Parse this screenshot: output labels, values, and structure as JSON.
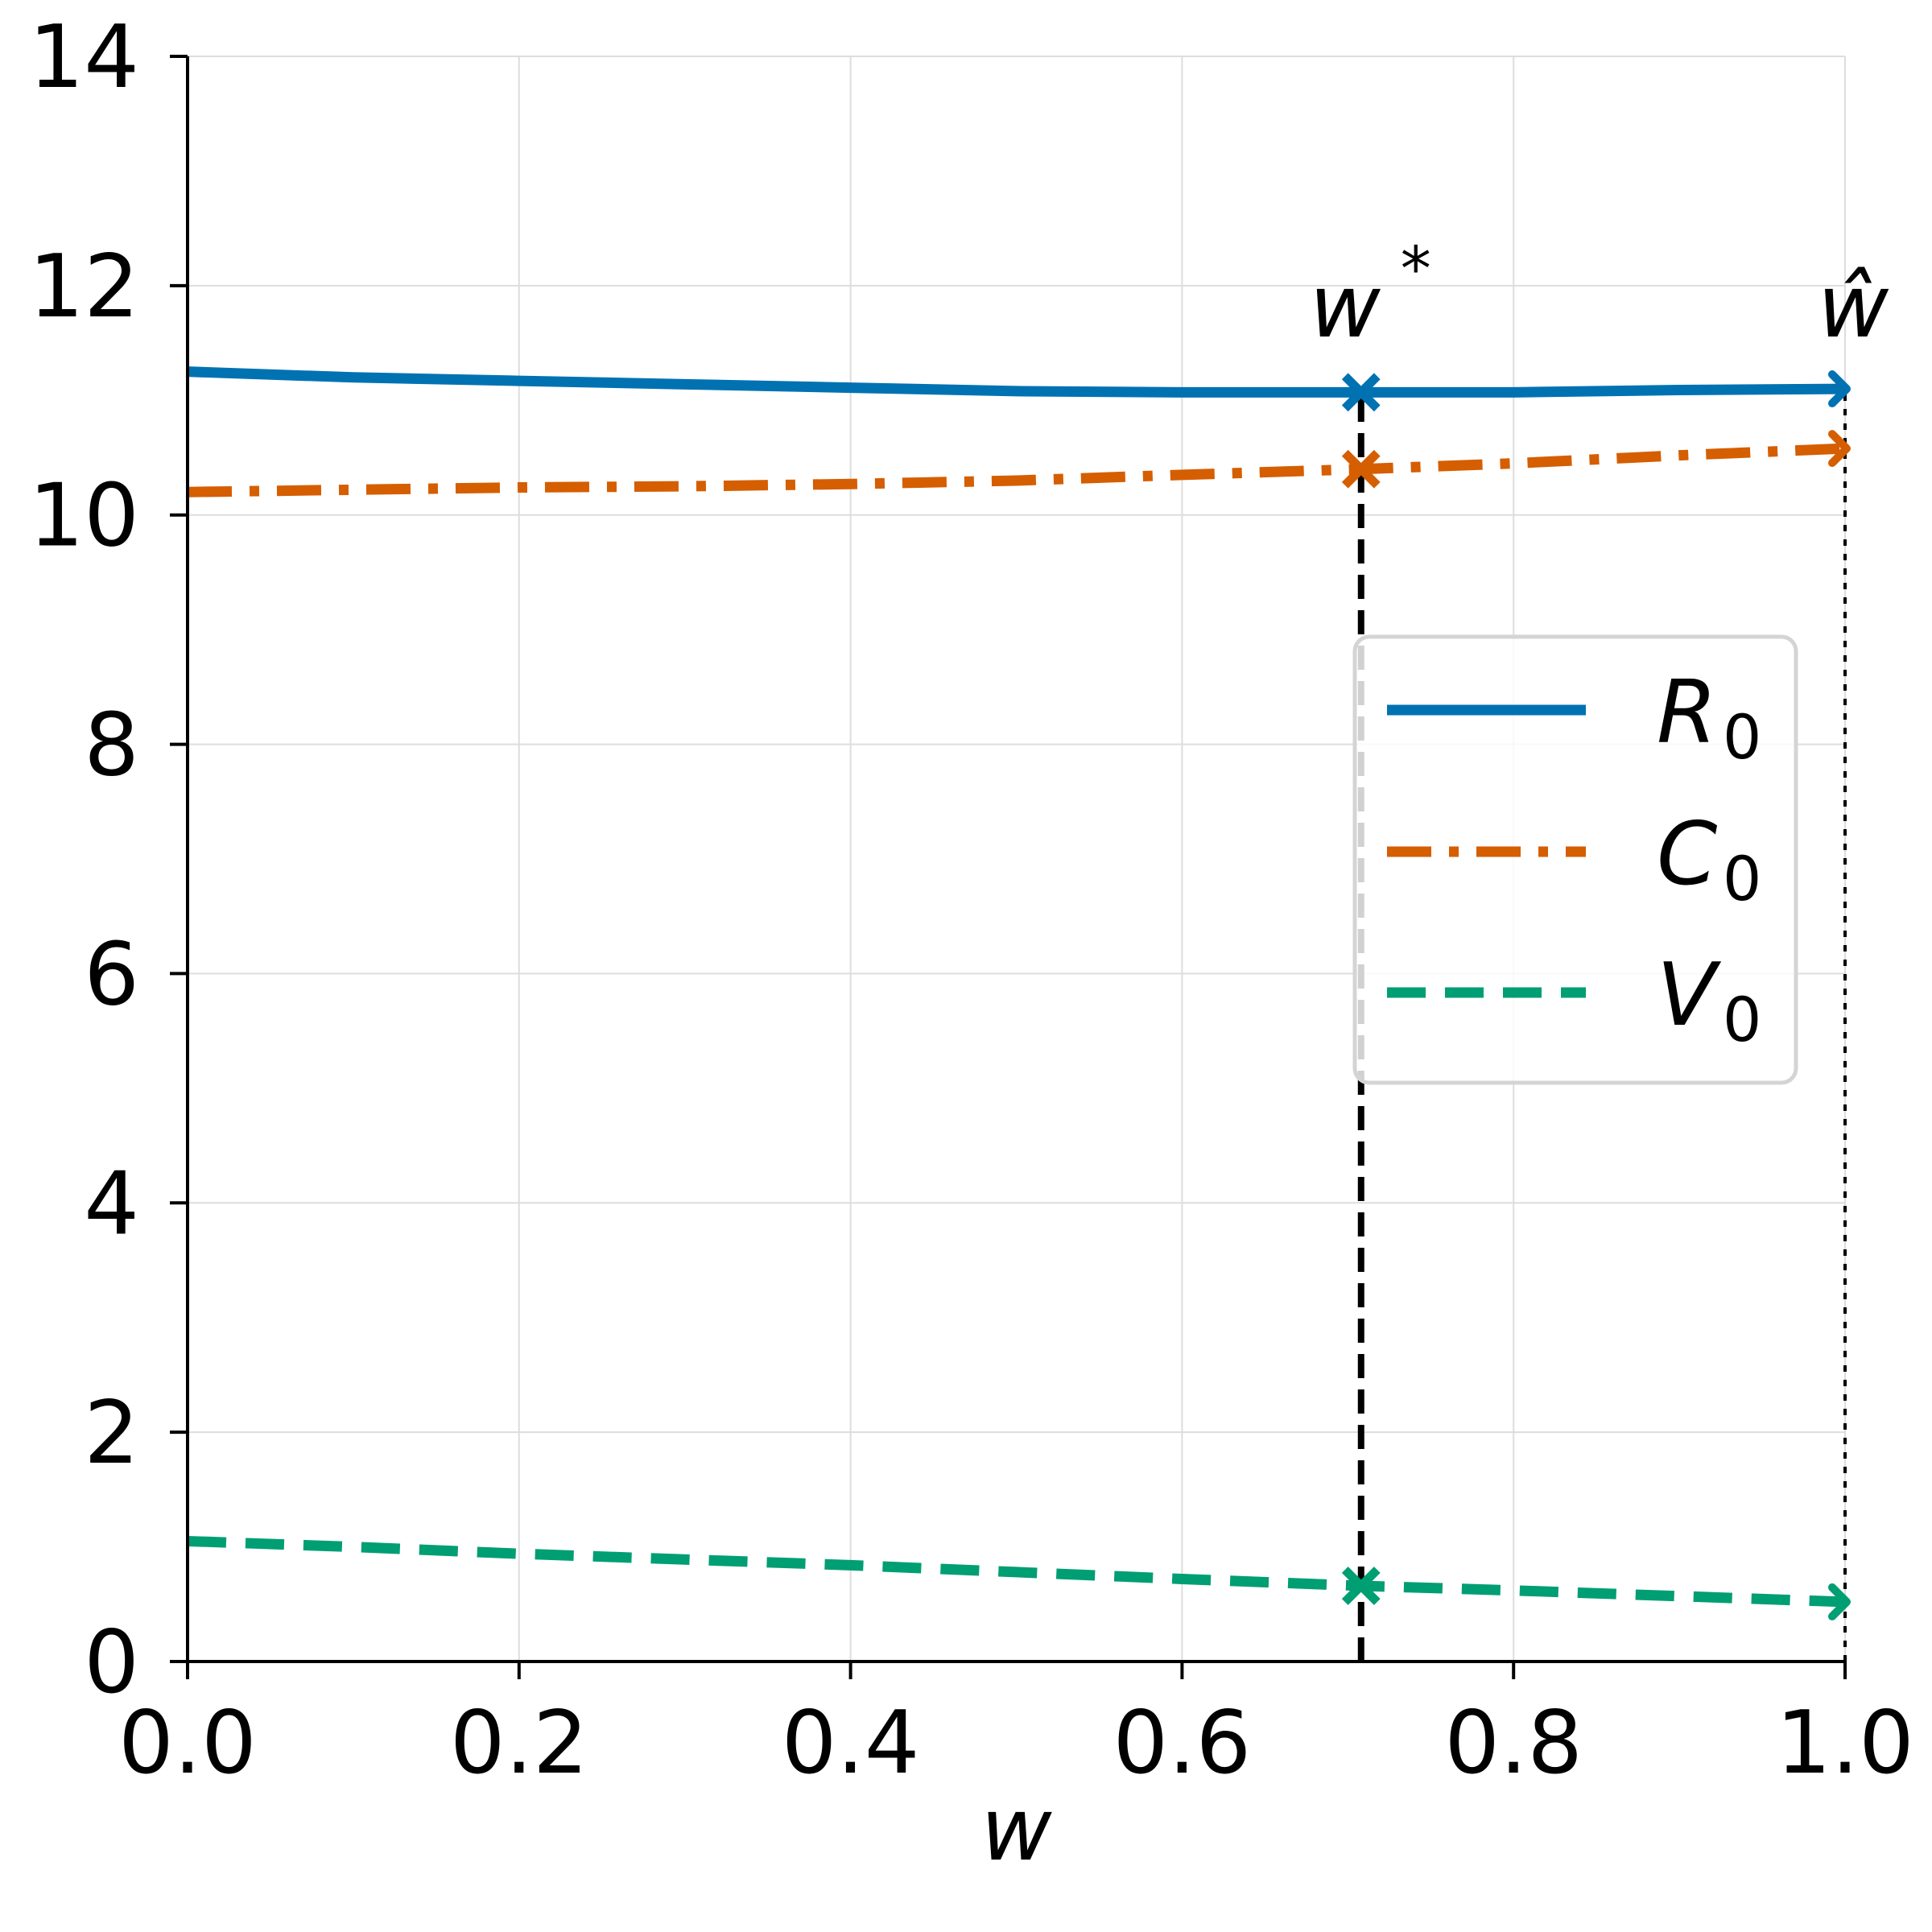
{
  "chart_data": {
    "type": "line",
    "title": "",
    "xlabel": "w",
    "ylabel": "",
    "xlim": [
      0.0,
      1.0
    ],
    "ylim": [
      0,
      14
    ],
    "x_ticks": [
      "0.0",
      "0.2",
      "0.4",
      "0.6",
      "0.8",
      "1.0"
    ],
    "y_ticks": [
      "0",
      "2",
      "4",
      "6",
      "8",
      "10",
      "12",
      "14"
    ],
    "grid": true,
    "legend_position": "center-right",
    "x": [
      0.0,
      0.1,
      0.2,
      0.3,
      0.4,
      0.5,
      0.6,
      0.708,
      0.8,
      0.9,
      1.0
    ],
    "series": [
      {
        "name": "R",
        "subscript": "0",
        "color": "#0072b2",
        "style": "solid",
        "values": [
          11.25,
          11.2,
          11.17,
          11.14,
          11.11,
          11.08,
          11.07,
          11.07,
          11.07,
          11.09,
          11.1
        ]
      },
      {
        "name": "C",
        "subscript": "0",
        "color": "#d55e00",
        "style": "dashdot",
        "values": [
          10.2,
          10.22,
          10.24,
          10.25,
          10.27,
          10.3,
          10.35,
          10.4,
          10.45,
          10.52,
          10.58
        ]
      },
      {
        "name": "V",
        "subscript": "0",
        "color": "#009e73",
        "style": "dashed",
        "values": [
          1.05,
          1.0,
          0.94,
          0.89,
          0.84,
          0.78,
          0.72,
          0.66,
          0.62,
          0.57,
          0.52
        ]
      }
    ],
    "annotations": [
      {
        "label": "w",
        "superscript": "*",
        "x": 0.708,
        "line_style": "dashed"
      },
      {
        "label": "ŵ",
        "superscript": "",
        "x": 1.0,
        "line_style": "dotted"
      }
    ]
  }
}
